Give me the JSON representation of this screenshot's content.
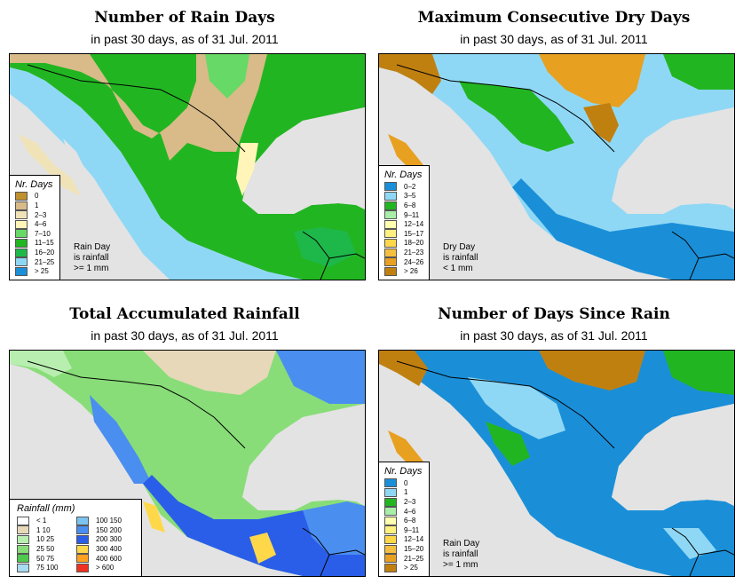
{
  "common_subtitle": "in past 30 days, as of  31 Jul. 2011",
  "panels": [
    {
      "title": "Number of Rain Days",
      "subtitle": "in past 30 days, as of  31 Jul. 2011",
      "legend_title": "Nr. Days",
      "legend_items": [
        {
          "label": "0",
          "color": "#c09030"
        },
        {
          "label": "1",
          "color": "#d8bb88"
        },
        {
          "label": "2–3",
          "color": "#f0e3b8"
        },
        {
          "label": "4–6",
          "color": "#fff5b8"
        },
        {
          "label": "7–10",
          "color": "#66d966"
        },
        {
          "label": "11–15",
          "color": "#22b522"
        },
        {
          "label": "16–20",
          "color": "#1eb84a"
        },
        {
          "label": "21–25",
          "color": "#8fd8f5"
        },
        {
          "label": "> 25",
          "color": "#1a8fd8"
        }
      ],
      "note": [
        "Rain Day",
        "is rainfall",
        ">= 1 mm"
      ]
    },
    {
      "title": "Maximum Consecutive Dry Days",
      "subtitle": "in past 30 days, as of  31 Jul. 2011",
      "legend_title": "Nr. Days",
      "legend_items": [
        {
          "label": "0–2",
          "color": "#1a8fd8"
        },
        {
          "label": "3–5",
          "color": "#8fd8f5"
        },
        {
          "label": "6–8",
          "color": "#22b522"
        },
        {
          "label": "9–11",
          "color": "#a8eea8"
        },
        {
          "label": "12–14",
          "color": "#ffffb0"
        },
        {
          "label": "15–17",
          "color": "#fff080"
        },
        {
          "label": "18–20",
          "color": "#ffd84a"
        },
        {
          "label": "21–23",
          "color": "#f5c040"
        },
        {
          "label": "24–26",
          "color": "#e8a020"
        },
        {
          "label": "> 26",
          "color": "#c08010"
        }
      ],
      "note": [
        "Dry Day",
        "is rainfall",
        "< 1 mm"
      ]
    },
    {
      "title": "Total Accumulated Rainfall",
      "subtitle": "in past 30 days, as of  31 Jul. 2011",
      "legend_title": "Rainfall (mm)",
      "legend_col1": [
        {
          "label": "< 1",
          "color": "#ffffff"
        },
        {
          "label": "1   10",
          "color": "#e6d8b8"
        },
        {
          "label": "10   25",
          "color": "#b8eeb0"
        },
        {
          "label": "25   50",
          "color": "#88dd78"
        },
        {
          "label": "50   75",
          "color": "#4ec84e"
        },
        {
          "label": "75   100",
          "color": "#a8dcf0"
        }
      ],
      "legend_col2": [
        {
          "label": "100  150",
          "color": "#7cc4f0"
        },
        {
          "label": "150  200",
          "color": "#4a8ef0"
        },
        {
          "label": "200  300",
          "color": "#2a5ee8"
        },
        {
          "label": "300  400",
          "color": "#ffd84a"
        },
        {
          "label": "400  600",
          "color": "#ffa020"
        },
        {
          "label": "> 600",
          "color": "#f03020"
        }
      ]
    },
    {
      "title": "Number of Days Since Rain",
      "subtitle": "in past 30 days, as of  31 Jul. 2011",
      "legend_title": "Nr. Days",
      "legend_items": [
        {
          "label": "0",
          "color": "#1a8fd8"
        },
        {
          "label": "1",
          "color": "#8fd8f5"
        },
        {
          "label": "2–3",
          "color": "#22b522"
        },
        {
          "label": "4–6",
          "color": "#a8eea8"
        },
        {
          "label": "6–8",
          "color": "#ffffb0"
        },
        {
          "label": "9–11",
          "color": "#fff080"
        },
        {
          "label": "12–14",
          "color": "#ffd84a"
        },
        {
          "label": "15–20",
          "color": "#f5c040"
        },
        {
          "label": "21–25",
          "color": "#e8a020"
        },
        {
          "label": "> 25",
          "color": "#c08010"
        }
      ],
      "note": [
        "Rain Day",
        "is rainfall",
        ">= 1 mm"
      ]
    }
  ],
  "map_colors": {
    "ocean": "#e3e3e3",
    "border": "#000000"
  }
}
